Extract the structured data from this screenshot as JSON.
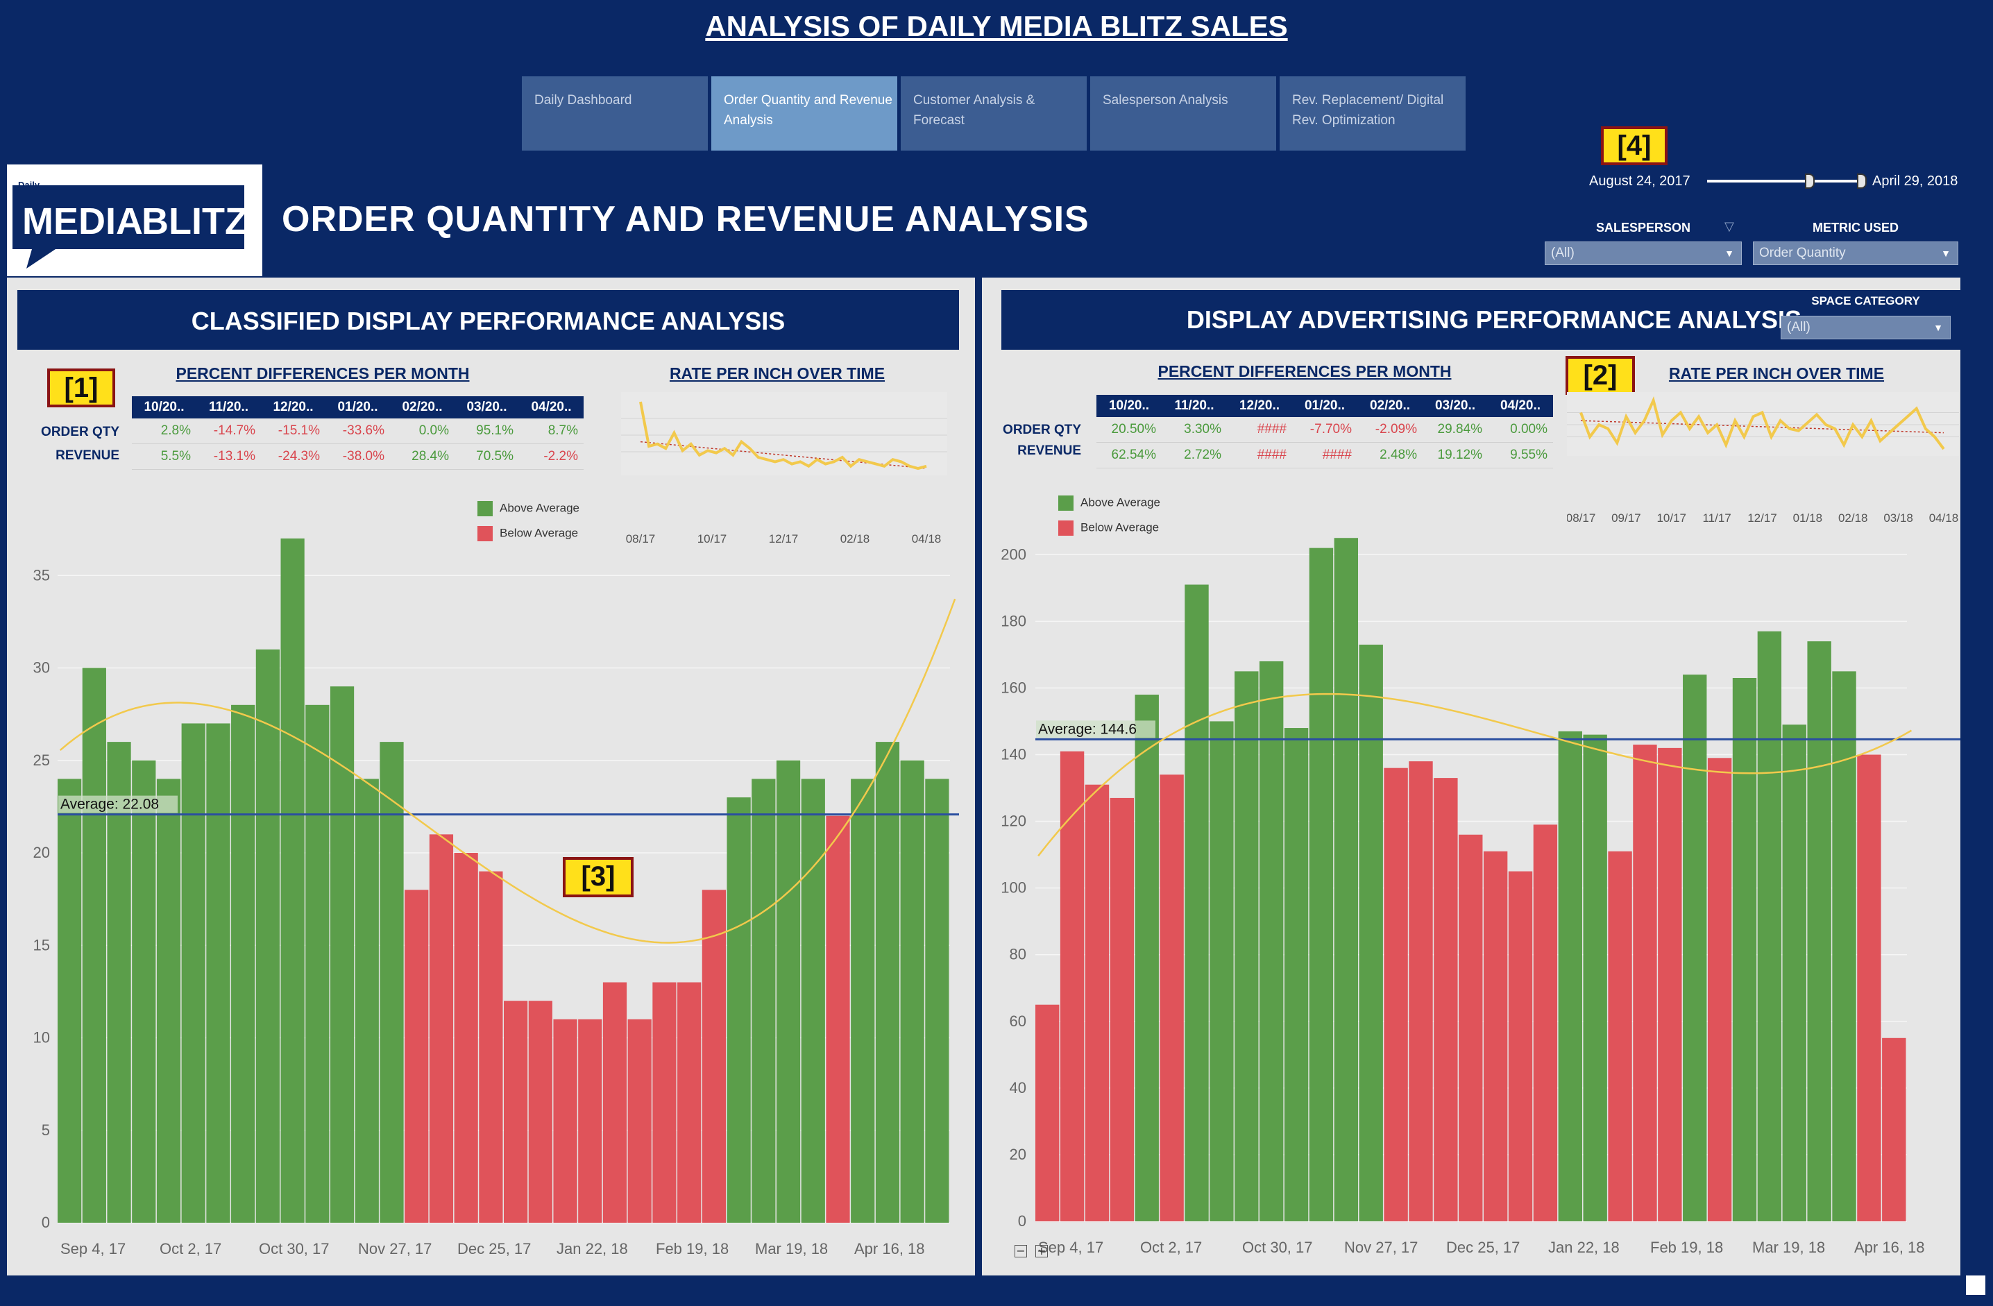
{
  "header": {
    "title": "ANALYSIS OF DAILY MEDIA BLITZ SALES",
    "page_title": "ORDER QUANTITY AND REVENUE ANALYSIS"
  },
  "tabs": [
    {
      "label": "Daily Dashboard",
      "active": false
    },
    {
      "label": "Order Quantity and Revenue Analysis",
      "active": true
    },
    {
      "label": "Customer Analysis & Forecast",
      "active": false
    },
    {
      "label": "Salesperson Analysis",
      "active": false
    },
    {
      "label": "Rev. Replacement/ Digital Rev. Optimization",
      "active": false
    }
  ],
  "logo": {
    "small": "Daily",
    "media": "MEDIA",
    "blitz": "BLITZ"
  },
  "markers": {
    "m1": "[1]",
    "m2": "[2]",
    "m3": "[3]",
    "m4": "[4]"
  },
  "date_range": {
    "start": "August 24, 2017",
    "end": "April 29, 2018",
    "slider_position": 0.88
  },
  "filters": {
    "salesperson_label": "SALESPERSON",
    "salesperson_value": "(All)",
    "metric_label": "METRIC USED",
    "metric_value": "Order Quantity",
    "space_category_label": "SPACE CATEGORY",
    "space_category_value": "(All)"
  },
  "left_panel": {
    "title": "CLASSIFIED DISPLAY PERFORMANCE ANALYSIS",
    "pct_title": "PERCENT DIFFERENCES PER MONTH",
    "rate_title": "RATE PER INCH OVER TIME",
    "row_labels": [
      "ORDER QTY",
      "REVENUE"
    ],
    "legend": {
      "above": "Above Average",
      "below": "Below Average"
    }
  },
  "right_panel": {
    "title": "DISPLAY ADVERTISING PERFORMANCE ANALYSIS",
    "pct_title": "PERCENT DIFFERENCES PER MONTH",
    "rate_title": "RATE PER INCH OVER TIME",
    "row_labels": [
      "ORDER QTY",
      "REVENUE"
    ],
    "legend": {
      "above": "Above Average",
      "below": "Below Average"
    }
  },
  "colors": {
    "navy": "#0a2866",
    "above": "#5b9e4a",
    "below": "#e0535a",
    "trend": "#f2c94c",
    "avg_line": "#2b4fa0",
    "pos_text": "#4a9a3c",
    "neg_text": "#d9454d"
  },
  "chart_data": [
    {
      "id": "left_pct_table",
      "type": "table",
      "columns": [
        "10/20..",
        "11/20..",
        "12/20..",
        "01/20..",
        "02/20..",
        "03/20..",
        "04/20.."
      ],
      "rows": [
        {
          "label": "ORDER QTY",
          "values": [
            "2.8%",
            "-14.7%",
            "-15.1%",
            "-33.6%",
            "0.0%",
            "95.1%",
            "8.7%"
          ]
        },
        {
          "label": "REVENUE",
          "values": [
            "5.5%",
            "-13.1%",
            "-24.3%",
            "-38.0%",
            "28.4%",
            "70.5%",
            "-2.2%"
          ]
        }
      ]
    },
    {
      "id": "left_rate",
      "type": "line",
      "title": "RATE PER INCH OVER TIME",
      "x_ticks": [
        "08/17",
        "10/17",
        "12/17",
        "02/18",
        "04/18"
      ],
      "values": [
        38,
        18,
        19,
        17,
        24,
        16,
        19,
        14,
        16,
        15,
        17,
        14,
        20,
        17,
        13,
        12,
        11,
        12,
        10,
        11,
        9,
        12,
        10,
        11,
        13,
        9,
        12,
        11,
        10,
        9,
        12,
        11,
        9,
        8,
        9
      ],
      "trend": [
        20,
        8
      ]
    },
    {
      "id": "left_bars",
      "type": "bar",
      "x_ticks": [
        "Sep 4, 17",
        "Oct 2, 17",
        "Oct 30, 17",
        "Nov 27, 17",
        "Dec 25, 17",
        "Jan 22, 18",
        "Feb 19, 18",
        "Mar 19, 18",
        "Apr 16, 18"
      ],
      "values": [
        24,
        30,
        26,
        25,
        24,
        27,
        27,
        28,
        31,
        37,
        28,
        29,
        24,
        26,
        18,
        21,
        20,
        19,
        12,
        12,
        11,
        11,
        13,
        11,
        13,
        13,
        18,
        23,
        24,
        25,
        24,
        22,
        24,
        26,
        25,
        24
      ],
      "average": 22.08,
      "average_label": "Average: 22.08",
      "y_ticks": [
        0,
        5,
        10,
        15,
        20,
        25,
        30,
        35
      ],
      "ylim": [
        0,
        38.5
      ],
      "legend": [
        "Above Average",
        "Below Average"
      ]
    },
    {
      "id": "right_pct_table",
      "type": "table",
      "columns": [
        "10/20..",
        "11/20..",
        "12/20..",
        "01/20..",
        "02/20..",
        "03/20..",
        "04/20.."
      ],
      "rows": [
        {
          "label": "ORDER QTY",
          "values": [
            "20.50%",
            "3.30%",
            "####",
            "-7.70%",
            "-2.09%",
            "29.84%",
            "0.00%"
          ]
        },
        {
          "label": "REVENUE",
          "values": [
            "62.54%",
            "2.72%",
            "####",
            "####",
            "2.48%",
            "19.12%",
            "9.55%"
          ]
        }
      ]
    },
    {
      "id": "right_rate",
      "type": "line",
      "title": "RATE PER INCH OVER TIME",
      "x_ticks": [
        "08/17",
        "09/17",
        "10/17",
        "11/17",
        "12/17",
        "01/18",
        "02/18",
        "03/18",
        "04/18"
      ],
      "values": [
        24,
        12,
        18,
        16,
        9,
        22,
        14,
        20,
        30,
        13,
        20,
        24,
        16,
        22,
        14,
        18,
        8,
        20,
        12,
        22,
        24,
        12,
        20,
        16,
        15,
        19,
        23,
        18,
        16,
        8,
        18,
        12,
        20,
        10,
        14,
        18,
        22,
        26,
        16,
        12,
        6
      ],
      "trend": [
        20,
        14
      ]
    },
    {
      "id": "right_bars",
      "type": "bar",
      "x_ticks": [
        "Sep 4, 17",
        "Oct 2, 17",
        "Oct 30, 17",
        "Nov 27, 17",
        "Dec 25, 17",
        "Jan 22, 18",
        "Feb 19, 18",
        "Mar 19, 18",
        "Apr 16, 18"
      ],
      "values": [
        65,
        141,
        131,
        127,
        158,
        134,
        191,
        150,
        165,
        168,
        148,
        202,
        205,
        173,
        136,
        138,
        133,
        116,
        111,
        105,
        119,
        147,
        146,
        111,
        143,
        142,
        164,
        139,
        163,
        177,
        149,
        174,
        165,
        140,
        55
      ],
      "average": 144.6,
      "average_label": "Average: 144.6",
      "y_ticks": [
        0,
        20,
        40,
        60,
        80,
        100,
        120,
        140,
        160,
        180,
        200
      ],
      "ylim": [
        0,
        214
      ],
      "legend": [
        "Above Average",
        "Below Average"
      ]
    }
  ]
}
